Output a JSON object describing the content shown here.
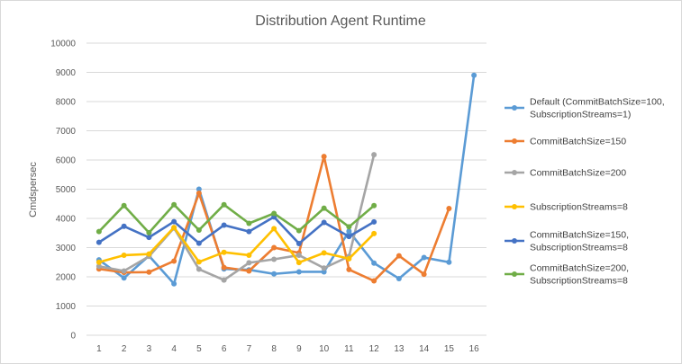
{
  "chart_data": {
    "type": "line",
    "title": "Distribution Agent Runtime",
    "xlabel": "",
    "ylabel": "Cmdspersec",
    "x": [
      1,
      2,
      3,
      4,
      5,
      6,
      7,
      8,
      9,
      10,
      11,
      12,
      13,
      14,
      15,
      16
    ],
    "ylim": [
      0,
      10000
    ],
    "yticks": [
      0,
      1000,
      2000,
      3000,
      4000,
      5000,
      6000,
      7000,
      8000,
      9000,
      10000
    ],
    "grid": "horizontal",
    "legend_position": "right",
    "series": [
      {
        "name": [
          "Default (CommitBatchSize=100,",
          "SubscriptionStreams=1)"
        ],
        "color": "#5B9BD5",
        "x": [
          1,
          2,
          3,
          4,
          5,
          6,
          7,
          8,
          9,
          10,
          11,
          12,
          13,
          14,
          15,
          16
        ],
        "values": [
          2580,
          1960,
          2720,
          1760,
          5000,
          2270,
          2240,
          2100,
          2170,
          2170,
          3560,
          2470,
          1940,
          2660,
          2500,
          8900
        ]
      },
      {
        "name": [
          "CommitBatchSize=150"
        ],
        "color": "#ED7D31",
        "x": [
          1,
          2,
          3,
          4,
          5,
          6,
          7,
          8,
          9,
          10,
          11,
          12,
          13,
          14,
          15
        ],
        "values": [
          2270,
          2150,
          2160,
          2540,
          4860,
          2320,
          2200,
          3000,
          2820,
          6120,
          2250,
          1860,
          2720,
          2090,
          4340
        ]
      },
      {
        "name": [
          "CommitBatchSize=200"
        ],
        "color": "#A5A5A5",
        "x": [
          1,
          2,
          3,
          4,
          5,
          6,
          7,
          8,
          9,
          10,
          11,
          12
        ],
        "values": [
          2360,
          2200,
          2700,
          3670,
          2260,
          1890,
          2480,
          2600,
          2740,
          2300,
          2700,
          6180
        ]
      },
      {
        "name": [
          "SubscriptionStreams=8"
        ],
        "color": "#FFC000",
        "x": [
          1,
          2,
          3,
          4,
          5,
          6,
          7,
          8,
          9,
          10,
          11,
          12
        ],
        "values": [
          2500,
          2740,
          2780,
          3690,
          2510,
          2840,
          2740,
          3650,
          2490,
          2820,
          2620,
          3480
        ]
      },
      {
        "name": [
          "CommitBatchSize=150,",
          "SubscriptionStreams=8"
        ],
        "color": "#4472C4",
        "x": [
          1,
          2,
          3,
          4,
          5,
          6,
          7,
          8,
          9,
          10,
          11,
          12
        ],
        "values": [
          3180,
          3730,
          3350,
          3890,
          3150,
          3770,
          3550,
          4050,
          3140,
          3860,
          3380,
          3880
        ]
      },
      {
        "name": [
          "CommitBatchSize=200,",
          "SubscriptionStreams=8"
        ],
        "color": "#70AD47",
        "x": [
          1,
          2,
          3,
          4,
          5,
          6,
          7,
          8,
          9,
          10,
          11,
          12
        ],
        "values": [
          3550,
          4440,
          3510,
          4470,
          3600,
          4470,
          3830,
          4170,
          3580,
          4350,
          3710,
          4440
        ]
      }
    ]
  }
}
